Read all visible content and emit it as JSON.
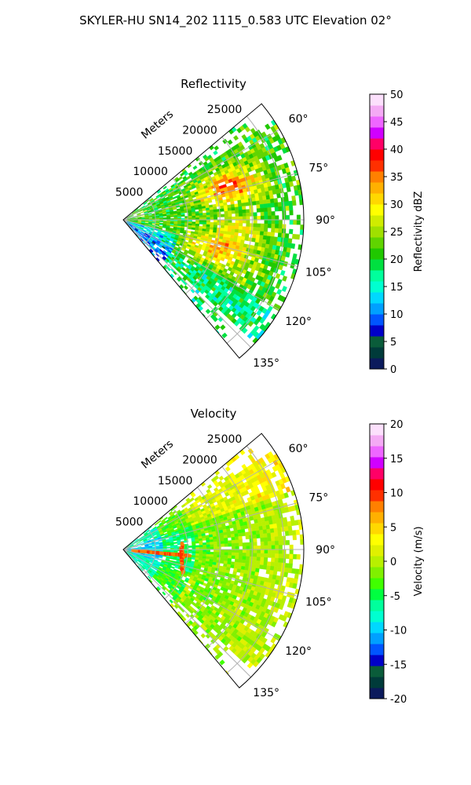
{
  "suptitle": "SKYLER-HU  SN14_202  1115_0.583 UTC Elevation 02°",
  "chart_data": [
    {
      "type": "heatmap",
      "projection": "polar-sector",
      "title": "Reflectivity",
      "range_label": "Meters",
      "range_ticks": [
        5000,
        10000,
        15000,
        20000,
        25000
      ],
      "range_tick_labels": [
        "5000",
        "10000",
        "15000",
        "20000",
        "25000"
      ],
      "range_max": 28000,
      "azimuth_ticks": [
        60,
        75,
        90,
        105,
        120,
        135
      ],
      "azimuth_tick_labels": [
        "60°",
        "75°",
        "90°",
        "105°",
        "120°",
        "135°"
      ],
      "azimuth_range": [
        50,
        140
      ],
      "grid": true,
      "colorbar": {
        "label": "Reflectivity dBZ",
        "vmin": 0,
        "vmax": 50,
        "ticks": [
          0,
          5,
          10,
          15,
          20,
          25,
          30,
          35,
          40,
          45,
          50
        ],
        "tick_labels": [
          "0",
          "5",
          "10",
          "15",
          "20",
          "25",
          "30",
          "35",
          "40",
          "45",
          "50"
        ],
        "palette": [
          "#0b1a5c",
          "#003b3a",
          "#0a5c3a",
          "#0000c8",
          "#0055ff",
          "#00a0ff",
          "#00d8ff",
          "#00ffd0",
          "#00ff9c",
          "#00e040",
          "#20c800",
          "#60d400",
          "#a0e000",
          "#d0ec00",
          "#ffff00",
          "#ffd800",
          "#ffb000",
          "#ff8000",
          "#ff3000",
          "#ff0000",
          "#ff0066",
          "#d000ff",
          "#ee66ff",
          "#f4aaf4",
          "#fce0fc"
        ]
      }
    },
    {
      "type": "heatmap",
      "projection": "polar-sector",
      "title": "Velocity",
      "range_label": "Meters",
      "range_ticks": [
        5000,
        10000,
        15000,
        20000,
        25000
      ],
      "range_tick_labels": [
        "5000",
        "10000",
        "15000",
        "20000",
        "25000"
      ],
      "range_max": 28000,
      "azimuth_ticks": [
        60,
        75,
        90,
        105,
        120,
        135
      ],
      "azimuth_tick_labels": [
        "60°",
        "75°",
        "90°",
        "105°",
        "120°",
        "135°"
      ],
      "azimuth_range": [
        50,
        140
      ],
      "grid": true,
      "colorbar": {
        "label": "Velocity (m/s)",
        "vmin": -20,
        "vmax": 20,
        "ticks": [
          -20,
          -15,
          -10,
          -5,
          0,
          5,
          10,
          15,
          20
        ],
        "tick_labels": [
          "-20",
          "-15",
          "-10",
          "-5",
          "0",
          "5",
          "10",
          "15",
          "20"
        ],
        "palette": [
          "#0b1a5c",
          "#003b3a",
          "#0a5c3a",
          "#0000c8",
          "#0055ff",
          "#00a0ff",
          "#00d8ff",
          "#00ffd0",
          "#00ff9c",
          "#00ff40",
          "#40ff00",
          "#80f000",
          "#b8f000",
          "#e0f000",
          "#ffff00",
          "#ffd800",
          "#ffb000",
          "#ff8000",
          "#ff3000",
          "#ff0000",
          "#ff0066",
          "#d000ff",
          "#ee66ff",
          "#f4aaf4",
          "#fce0fc"
        ]
      }
    }
  ]
}
